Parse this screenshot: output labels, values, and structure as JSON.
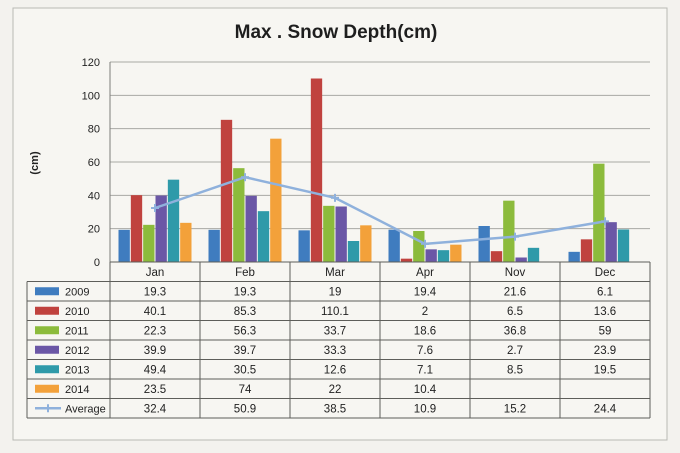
{
  "chart_data": {
    "type": "bar",
    "title": "Max . Snow Depth(cm)",
    "ylabel": "(cm)",
    "xlabel": "",
    "ylim": [
      0,
      120
    ],
    "yticks": [
      0,
      20,
      40,
      60,
      80,
      100,
      120
    ],
    "grid": true,
    "legend": "data-table",
    "categories": [
      "Jan",
      "Feb",
      "Mar",
      "Apr",
      "Nov",
      "Dec"
    ],
    "series": [
      {
        "name": "2009",
        "type": "bar",
        "color": "#3f7cbf",
        "values": [
          19.3,
          19.3,
          19,
          19.4,
          21.6,
          6.1
        ]
      },
      {
        "name": "2010",
        "type": "bar",
        "color": "#c0423e",
        "values": [
          40.1,
          85.3,
          110.1,
          2,
          6.5,
          13.6
        ]
      },
      {
        "name": "2011",
        "type": "bar",
        "color": "#8cbb3c",
        "values": [
          22.3,
          56.3,
          33.7,
          18.6,
          36.8,
          59
        ]
      },
      {
        "name": "2012",
        "type": "bar",
        "color": "#6b57a6",
        "values": [
          39.9,
          39.7,
          33.3,
          7.6,
          2.7,
          23.9
        ]
      },
      {
        "name": "2013",
        "type": "bar",
        "color": "#2f9aa9",
        "values": [
          49.4,
          30.5,
          12.6,
          7.1,
          8.5,
          19.5
        ]
      },
      {
        "name": "2014",
        "type": "bar",
        "color": "#f3a13a",
        "values": [
          23.5,
          74,
          22,
          10.4,
          null,
          null
        ]
      },
      {
        "name": "Average",
        "type": "line",
        "color": "#8fb1dc",
        "values": [
          32.4,
          50.9,
          38.5,
          10.9,
          15.2,
          24.4
        ]
      }
    ]
  }
}
